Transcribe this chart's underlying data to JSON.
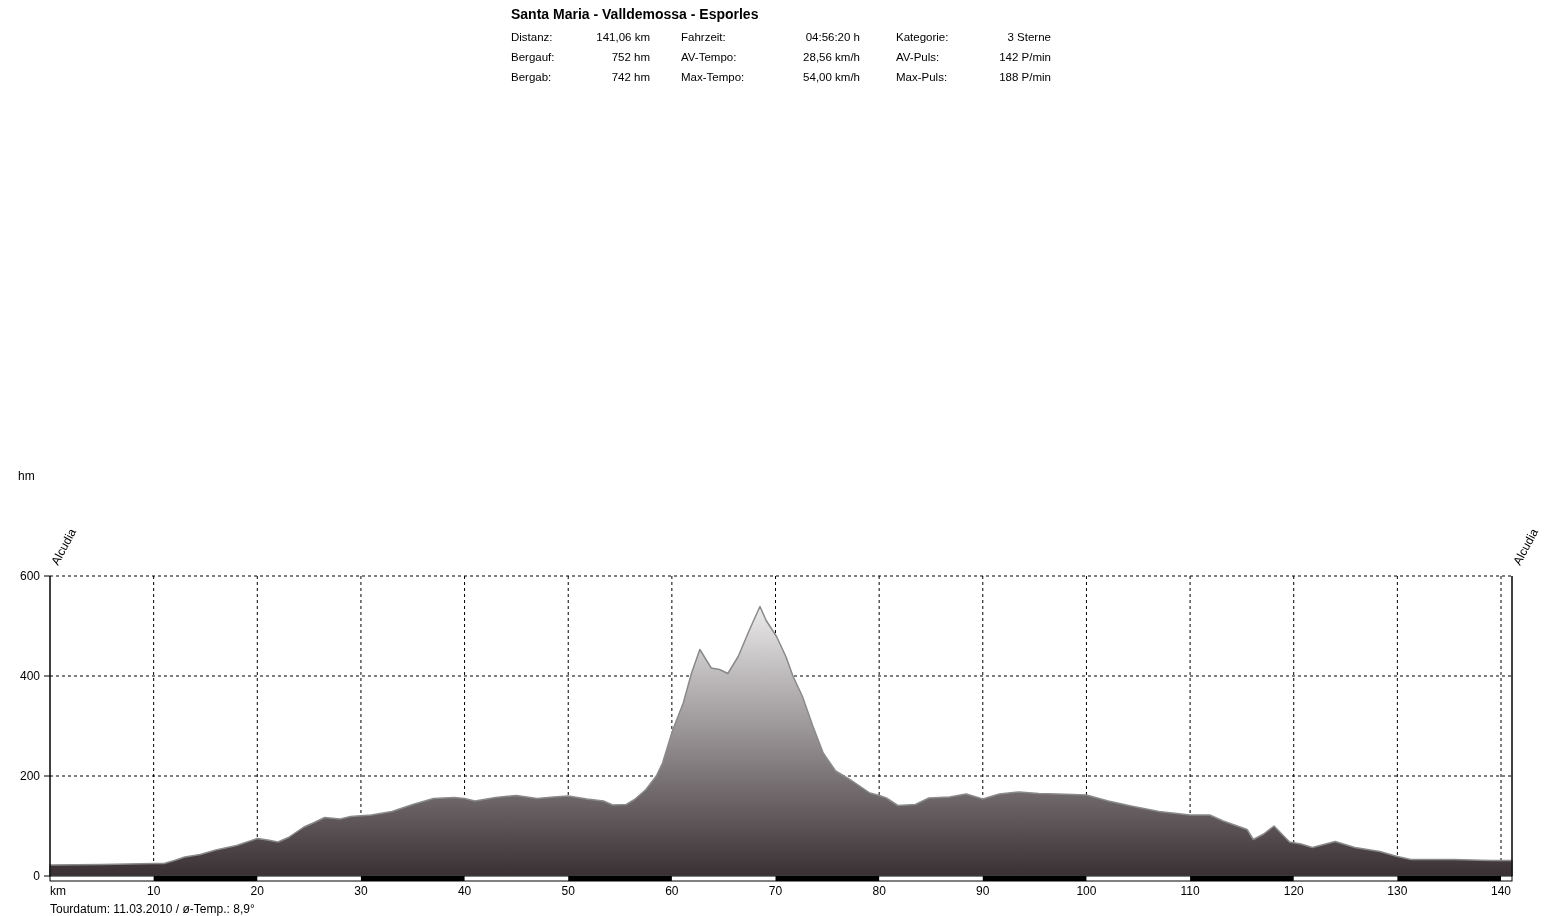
{
  "chart_data": {
    "type": "area",
    "title": "Santa Maria - Valldemossa - Esporles",
    "annotations": [
      "Distanz:",
      "141,06 km",
      "Fahrzeit:",
      "04:56:20 h",
      "Kategorie:",
      "3 Sterne",
      "Bergauf:",
      "752 hm",
      "AV-Tempo:",
      "28,56 km/h",
      "AV-Puls:",
      "142 P/min",
      "Bergab:",
      "742 hm",
      "Max-Tempo:",
      "54,00 km/h",
      "Max-Puls:",
      "188 P/min",
      "hm",
      "Alcudia",
      "Alcudia",
      "Tourdatum: 11.03.2010 / ø-Temp.: 8,9°"
    ],
    "xlabel": "km",
    "color": "#8a8a8a",
    "x": [
      0,
      5,
      10,
      11,
      12,
      13,
      14.5,
      16,
      18,
      20,
      21,
      22,
      23,
      24.5,
      25.5,
      26.5,
      28,
      29,
      31,
      33,
      35,
      37,
      39,
      40,
      41,
      43,
      45,
      47,
      48.6,
      50,
      51.8,
      53.4,
      54.3,
      55.6,
      56.4,
      57.5,
      58.5,
      59.1,
      60.1,
      61.1,
      61.9,
      62.7,
      63.8,
      64.6,
      65.4,
      66.4,
      67.5,
      68.5,
      69.1,
      70.1,
      71,
      71.7,
      72.6,
      73.6,
      74.6,
      75.8,
      77.4,
      79.1,
      80,
      80.7,
      81.8,
      83.5,
      84.8,
      86.8,
      88.4,
      90,
      91.6,
      93.5,
      95.4,
      97.2,
      100,
      102.1,
      104.3,
      107,
      110,
      111.9,
      113.2,
      115.5,
      116.1,
      117.1,
      118.1,
      119.6,
      120.7,
      121.8,
      124,
      125.9,
      128.3,
      130,
      131.3,
      135.4,
      139,
      141.06
    ],
    "values": [
      22,
      23,
      25,
      25,
      31,
      38,
      43,
      52,
      61,
      75,
      72,
      68,
      77,
      98,
      107,
      117,
      114,
      119,
      122,
      129,
      143,
      155,
      157,
      155,
      150,
      157,
      161,
      155,
      158,
      160,
      154,
      150,
      142,
      143,
      153,
      173,
      200,
      226,
      293,
      346,
      406,
      453,
      416,
      413,
      405,
      439,
      493,
      539,
      511,
      479,
      439,
      399,
      359,
      300,
      246,
      210,
      190,
      166,
      161,
      156,
      141,
      143,
      156,
      158,
      164,
      154,
      164,
      168,
      165,
      164,
      162,
      150,
      140,
      129,
      122,
      122,
      110,
      93,
      73,
      84,
      100,
      68,
      64,
      57,
      69,
      57,
      49,
      39,
      33,
      33,
      31,
      31
    ],
    "xlim": [
      0,
      141.06
    ],
    "xticks": [
      10,
      20,
      30,
      40,
      50,
      60,
      70,
      80,
      90,
      100,
      110,
      120,
      130,
      140
    ],
    "ylim": [
      0,
      600
    ],
    "yticks": [
      0,
      200,
      400,
      600
    ],
    "grid": true
  }
}
